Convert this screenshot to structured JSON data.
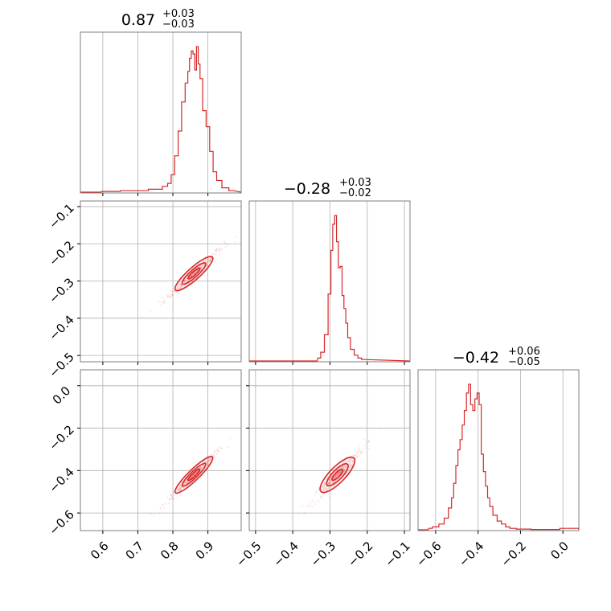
{
  "chart_data": {
    "type": "corner",
    "color": "#d62728",
    "grid": true,
    "params": [
      {
        "median": 0.87,
        "plus": 0.03,
        "minus": 0.03,
        "range": [
          0.536,
          0.995
        ],
        "ticks": [
          0.6,
          0.7,
          0.8,
          0.9
        ]
      },
      {
        "median": -0.28,
        "plus": 0.03,
        "minus": 0.02,
        "range": [
          -0.517,
          -0.085
        ],
        "ticks": [
          -0.5,
          -0.4,
          -0.3,
          -0.2,
          -0.1
        ]
      },
      {
        "median": -0.42,
        "plus": 0.06,
        "minus": 0.05,
        "range": [
          -0.683,
          0.075
        ],
        "ticks": [
          -0.6,
          -0.4,
          -0.2,
          0.0
        ]
      }
    ],
    "titles": [
      {
        "main": "0.87",
        "sup": "+0.03",
        "sub": "−0.03"
      },
      {
        "main": "−0.28",
        "sup": "+0.03",
        "sub": "−0.02"
      },
      {
        "main": "−0.42",
        "sup": "+0.06",
        "sub": "−0.05"
      }
    ],
    "tick_labels": [
      [
        "0.6",
        "0.7",
        "0.8",
        "0.9"
      ],
      [
        "−0.5",
        "−0.4",
        "−0.3",
        "−0.2",
        "−0.1"
      ],
      [
        "−0.6",
        "−0.4",
        "−0.2",
        "0.0"
      ]
    ],
    "histograms": [
      {
        "param": 0,
        "x": [
          0.6,
          0.7,
          0.76,
          0.78,
          0.79,
          0.8,
          0.81,
          0.82,
          0.83,
          0.84,
          0.845,
          0.85,
          0.855,
          0.86,
          0.865,
          0.87,
          0.875,
          0.88,
          0.89,
          0.9,
          0.91,
          0.92,
          0.93,
          0.95,
          0.97
        ],
        "heights": [
          0.005,
          0.01,
          0.02,
          0.04,
          0.06,
          0.12,
          0.25,
          0.42,
          0.62,
          0.75,
          0.83,
          0.92,
          0.97,
          0.95,
          0.84,
          1.0,
          0.88,
          0.78,
          0.56,
          0.45,
          0.28,
          0.14,
          0.08,
          0.03,
          0.01
        ]
      },
      {
        "param": 1,
        "x": [
          -0.33,
          -0.32,
          -0.31,
          -0.3,
          -0.295,
          -0.29,
          -0.285,
          -0.28,
          -0.275,
          -0.27,
          -0.265,
          -0.26,
          -0.255,
          -0.25,
          -0.24,
          -0.23,
          -0.22,
          -0.21
        ],
        "heights": [
          0.02,
          0.06,
          0.18,
          0.46,
          0.76,
          0.94,
          1.0,
          0.82,
          0.64,
          0.65,
          0.45,
          0.36,
          0.26,
          0.16,
          0.08,
          0.04,
          0.02,
          0.01
        ]
      },
      {
        "param": 2,
        "x": [
          -0.63,
          -0.6,
          -0.57,
          -0.55,
          -0.53,
          -0.52,
          -0.51,
          -0.5,
          -0.49,
          -0.48,
          -0.47,
          -0.46,
          -0.45,
          -0.44,
          -0.43,
          -0.42,
          -0.41,
          -0.4,
          -0.39,
          -0.38,
          -0.37,
          -0.36,
          -0.35,
          -0.34,
          -0.32,
          -0.3,
          -0.28,
          -0.26,
          -0.24,
          -0.2,
          -0.1,
          0.07
        ],
        "heights": [
          0.01,
          0.02,
          0.04,
          0.08,
          0.15,
          0.22,
          0.32,
          0.44,
          0.55,
          0.62,
          0.72,
          0.82,
          0.94,
          1.0,
          0.86,
          0.82,
          0.9,
          0.94,
          0.86,
          0.52,
          0.4,
          0.3,
          0.22,
          0.16,
          0.1,
          0.06,
          0.04,
          0.02,
          0.01,
          0.005,
          0.002,
          0.01
        ]
      }
    ],
    "scatter": [
      {
        "x": 0,
        "y": 1,
        "slope": 0.84,
        "spread": 0.007,
        "center": [
          0.86,
          -0.28
        ]
      },
      {
        "x": 0,
        "y": 2,
        "slope": 1.6,
        "spread": 0.01,
        "center": [
          0.86,
          -0.42
        ]
      },
      {
        "x": 1,
        "y": 2,
        "slope": 1.8,
        "spread": 0.018,
        "center": [
          -0.28,
          -0.42
        ]
      }
    ]
  }
}
